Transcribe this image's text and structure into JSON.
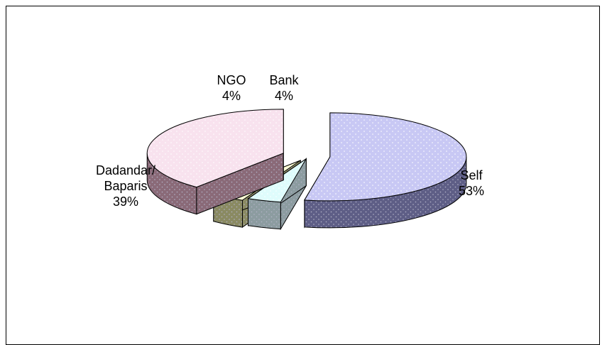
{
  "chart_data": {
    "type": "pie",
    "title": "",
    "categories": [
      "Self",
      "Bank",
      "NGO",
      "Dadandar/ Baparis"
    ],
    "values": [
      53,
      4,
      4,
      39
    ],
    "labels": [
      {
        "lines": [
          "Self"
        ],
        "pct": "53%"
      },
      {
        "lines": [
          "Bank"
        ],
        "pct": "4%"
      },
      {
        "lines": [
          "NGO"
        ],
        "pct": "4%"
      },
      {
        "lines": [
          "Dadandar/",
          "Baparis"
        ],
        "pct": "39%"
      }
    ],
    "colors": {
      "Self": "#c8c8f4",
      "Bank": "#dffcfc",
      "NGO": "#ffffd4",
      "Dadandar/ Baparis": "#f8e2ee"
    },
    "side_colors": {
      "Self": "#5e5e86",
      "Bank": "#8c9ca0",
      "NGO": "#8a8a62",
      "Dadandar/ Baparis": "#8a6a78"
    },
    "style": "3d-exploded",
    "legend": "none"
  }
}
